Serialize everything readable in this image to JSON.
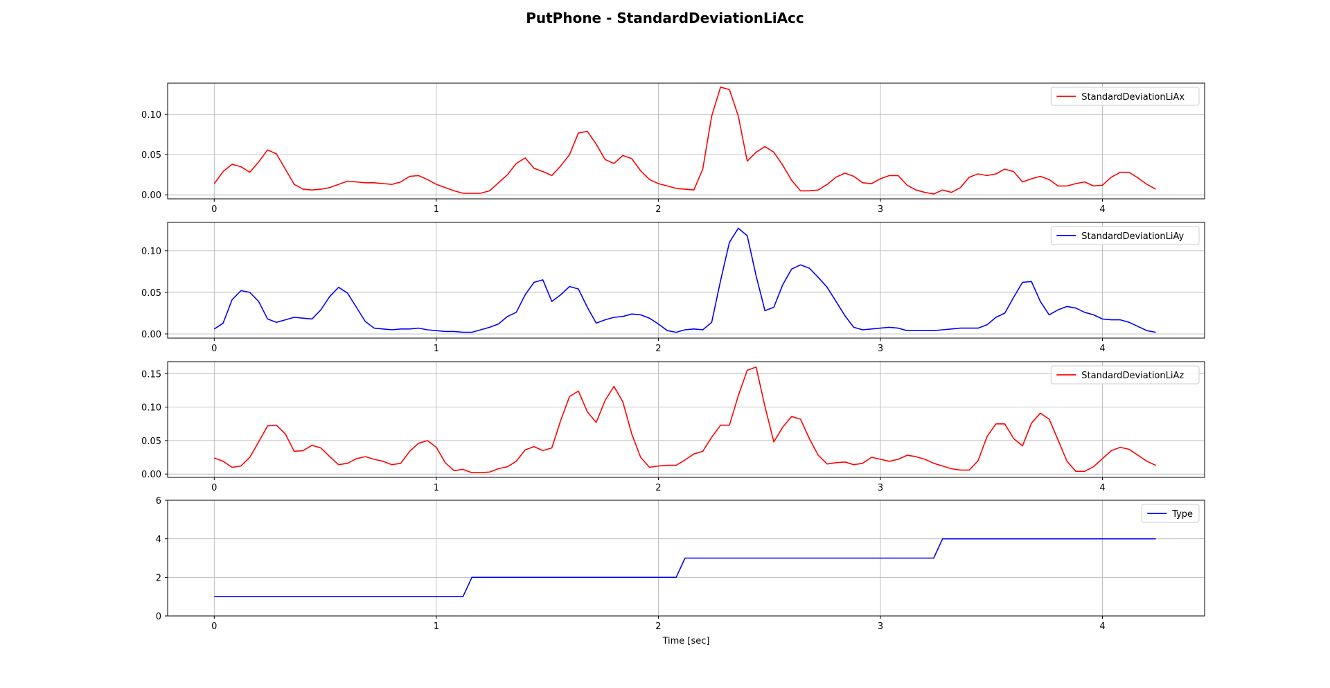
{
  "figure": {
    "title": "PutPhone - StandardDeviationLiAcc",
    "xlabel": "Time [sec]"
  },
  "chart_data": [
    {
      "type": "line",
      "title": "PutPhone - StandardDeviationLiAcc",
      "xlabel": "",
      "ylabel": "",
      "xlim": [
        -0.21,
        4.46
      ],
      "ylim": [
        -0.005,
        0.139
      ],
      "xticks": [
        0,
        1,
        2,
        3,
        4
      ],
      "yticks": [
        0.0,
        0.05,
        0.1
      ],
      "ytick_decimals": 2,
      "grid": true,
      "legend": "top-right",
      "series": [
        {
          "name": "StandardDeviationLiAx",
          "color": "#ff0000",
          "x": [
            0,
            0.04,
            0.08,
            0.12,
            0.16,
            0.2,
            0.24,
            0.28,
            0.32,
            0.36,
            0.4,
            0.44,
            0.48,
            0.52,
            0.56,
            0.6,
            0.64,
            0.68,
            0.72,
            0.76,
            0.8,
            0.84,
            0.88,
            0.92,
            0.96,
            1,
            1.04,
            1.08,
            1.12,
            1.16,
            1.2,
            1.24,
            1.28,
            1.32,
            1.36,
            1.4,
            1.44,
            1.48,
            1.52,
            1.56,
            1.6,
            1.64,
            1.68,
            1.72,
            1.76,
            1.8,
            1.84,
            1.88,
            1.92,
            1.96,
            2,
            2.04,
            2.08,
            2.12,
            2.16,
            2.2,
            2.24,
            2.28,
            2.32,
            2.36,
            2.4,
            2.44,
            2.48,
            2.52,
            2.56,
            2.6,
            2.64,
            2.68,
            2.72,
            2.76,
            2.8,
            2.84,
            2.88,
            2.92,
            2.96,
            3,
            3.04,
            3.08,
            3.12,
            3.16,
            3.2,
            3.24,
            3.28,
            3.32,
            3.36,
            3.4,
            3.44,
            3.48,
            3.52,
            3.56,
            3.6,
            3.64,
            3.68,
            3.72,
            3.76,
            3.8,
            3.84,
            3.88,
            3.92,
            3.96,
            4,
            4.04,
            4.08,
            4.12,
            4.16,
            4.2,
            4.24
          ],
          "values": [
            0.014,
            0.029,
            0.038,
            0.035,
            0.028,
            0.041,
            0.056,
            0.051,
            0.032,
            0.013,
            0.007,
            0.006,
            0.007,
            0.009,
            0.013,
            0.017,
            0.016,
            0.015,
            0.015,
            0.014,
            0.013,
            0.016,
            0.023,
            0.024,
            0.019,
            0.013,
            0.009,
            0.005,
            0.002,
            0.002,
            0.002,
            0.005,
            0.015,
            0.025,
            0.039,
            0.046,
            0.033,
            0.029,
            0.024,
            0.036,
            0.05,
            0.077,
            0.079,
            0.063,
            0.044,
            0.039,
            0.049,
            0.045,
            0.03,
            0.019,
            0.014,
            0.011,
            0.008,
            0.007,
            0.006,
            0.032,
            0.098,
            0.134,
            0.131,
            0.098,
            0.042,
            0.053,
            0.06,
            0.053,
            0.037,
            0.018,
            0.005,
            0.005,
            0.006,
            0.013,
            0.022,
            0.027,
            0.023,
            0.015,
            0.014,
            0.02,
            0.024,
            0.024,
            0.012,
            0.006,
            0.003,
            0.001,
            0.006,
            0.003,
            0.009,
            0.022,
            0.026,
            0.024,
            0.026,
            0.032,
            0.029,
            0.016,
            0.02,
            0.023,
            0.019,
            0.011,
            0.011,
            0.014,
            0.016,
            0.011,
            0.012,
            0.022,
            0.028,
            0.028,
            0.021,
            0.013,
            0.007
          ]
        }
      ]
    },
    {
      "type": "line",
      "title": "",
      "xlabel": "",
      "ylabel": "",
      "xlim": [
        -0.21,
        4.46
      ],
      "ylim": [
        -0.005,
        0.134
      ],
      "xticks": [
        0,
        1,
        2,
        3,
        4
      ],
      "yticks": [
        0.0,
        0.05,
        0.1
      ],
      "ytick_decimals": 2,
      "grid": true,
      "legend": "top-right",
      "series": [
        {
          "name": "StandardDeviationLiAy",
          "color": "#0000ff",
          "x": [
            0,
            0.04,
            0.08,
            0.12,
            0.16,
            0.2,
            0.24,
            0.28,
            0.32,
            0.36,
            0.4,
            0.44,
            0.48,
            0.52,
            0.56,
            0.6,
            0.64,
            0.68,
            0.72,
            0.76,
            0.8,
            0.84,
            0.88,
            0.92,
            0.96,
            1,
            1.04,
            1.08,
            1.12,
            1.16,
            1.2,
            1.24,
            1.28,
            1.32,
            1.36,
            1.4,
            1.44,
            1.48,
            1.52,
            1.56,
            1.6,
            1.64,
            1.68,
            1.72,
            1.76,
            1.8,
            1.84,
            1.88,
            1.92,
            1.96,
            2,
            2.04,
            2.08,
            2.12,
            2.16,
            2.2,
            2.24,
            2.28,
            2.32,
            2.36,
            2.4,
            2.44,
            2.48,
            2.52,
            2.56,
            2.6,
            2.64,
            2.68,
            2.72,
            2.76,
            2.8,
            2.84,
            2.88,
            2.92,
            2.96,
            3,
            3.04,
            3.08,
            3.12,
            3.16,
            3.2,
            3.24,
            3.28,
            3.32,
            3.36,
            3.4,
            3.44,
            3.48,
            3.52,
            3.56,
            3.6,
            3.64,
            3.68,
            3.72,
            3.76,
            3.8,
            3.84,
            3.88,
            3.92,
            3.96,
            4,
            4.04,
            4.08,
            4.12,
            4.16,
            4.2,
            4.24
          ],
          "values": [
            0.006,
            0.013,
            0.041,
            0.052,
            0.05,
            0.039,
            0.018,
            0.014,
            0.017,
            0.02,
            0.019,
            0.018,
            0.029,
            0.045,
            0.056,
            0.049,
            0.032,
            0.015,
            0.007,
            0.006,
            0.005,
            0.006,
            0.006,
            0.007,
            0.005,
            0.004,
            0.003,
            0.003,
            0.002,
            0.002,
            0.005,
            0.008,
            0.012,
            0.021,
            0.026,
            0.047,
            0.062,
            0.065,
            0.039,
            0.047,
            0.057,
            0.054,
            0.032,
            0.013,
            0.017,
            0.02,
            0.021,
            0.024,
            0.023,
            0.019,
            0.012,
            0.004,
            0.002,
            0.005,
            0.006,
            0.005,
            0.014,
            0.064,
            0.11,
            0.127,
            0.118,
            0.07,
            0.028,
            0.032,
            0.059,
            0.078,
            0.083,
            0.079,
            0.068,
            0.056,
            0.039,
            0.022,
            0.008,
            0.005,
            0.006,
            0.007,
            0.008,
            0.007,
            0.004,
            0.004,
            0.004,
            0.004,
            0.005,
            0.006,
            0.007,
            0.007,
            0.007,
            0.011,
            0.02,
            0.025,
            0.044,
            0.062,
            0.063,
            0.039,
            0.023,
            0.029,
            0.033,
            0.031,
            0.026,
            0.023,
            0.018,
            0.017,
            0.017,
            0.014,
            0.009,
            0.004,
            0.002
          ]
        }
      ]
    },
    {
      "type": "line",
      "title": "",
      "xlabel": "",
      "ylabel": "",
      "xlim": [
        -0.21,
        4.46
      ],
      "ylim": [
        -0.005,
        0.168
      ],
      "xticks": [
        0,
        1,
        2,
        3,
        4
      ],
      "yticks": [
        0.0,
        0.05,
        0.1,
        0.15
      ],
      "ytick_decimals": 2,
      "grid": true,
      "legend": "top-right",
      "series": [
        {
          "name": "StandardDeviationLiAz",
          "color": "#ff0000",
          "x": [
            0,
            0.04,
            0.08,
            0.12,
            0.16,
            0.2,
            0.24,
            0.28,
            0.32,
            0.36,
            0.4,
            0.44,
            0.48,
            0.52,
            0.56,
            0.6,
            0.64,
            0.68,
            0.72,
            0.76,
            0.8,
            0.84,
            0.88,
            0.92,
            0.96,
            1,
            1.04,
            1.08,
            1.12,
            1.16,
            1.2,
            1.24,
            1.28,
            1.32,
            1.36,
            1.4,
            1.44,
            1.48,
            1.52,
            1.56,
            1.6,
            1.64,
            1.68,
            1.72,
            1.76,
            1.8,
            1.84,
            1.88,
            1.92,
            1.96,
            2,
            2.04,
            2.08,
            2.12,
            2.16,
            2.2,
            2.24,
            2.28,
            2.32,
            2.36,
            2.4,
            2.44,
            2.48,
            2.52,
            2.56,
            2.6,
            2.64,
            2.68,
            2.72,
            2.76,
            2.8,
            2.84,
            2.88,
            2.92,
            2.96,
            3,
            3.04,
            3.08,
            3.12,
            3.16,
            3.2,
            3.24,
            3.28,
            3.32,
            3.36,
            3.4,
            3.44,
            3.48,
            3.52,
            3.56,
            3.6,
            3.64,
            3.68,
            3.72,
            3.76,
            3.8,
            3.84,
            3.88,
            3.92,
            3.96,
            4,
            4.04,
            4.08,
            4.12,
            4.16,
            4.2,
            4.24
          ],
          "values": [
            0.024,
            0.019,
            0.01,
            0.012,
            0.025,
            0.048,
            0.072,
            0.073,
            0.06,
            0.034,
            0.035,
            0.043,
            0.039,
            0.026,
            0.014,
            0.016,
            0.023,
            0.026,
            0.022,
            0.019,
            0.014,
            0.016,
            0.034,
            0.046,
            0.05,
            0.04,
            0.017,
            0.005,
            0.007,
            0.002,
            0.002,
            0.003,
            0.008,
            0.011,
            0.019,
            0.036,
            0.041,
            0.035,
            0.039,
            0.08,
            0.116,
            0.124,
            0.093,
            0.077,
            0.11,
            0.131,
            0.108,
            0.06,
            0.025,
            0.01,
            0.012,
            0.013,
            0.013,
            0.021,
            0.03,
            0.034,
            0.055,
            0.073,
            0.073,
            0.117,
            0.155,
            0.16,
            0.101,
            0.048,
            0.07,
            0.086,
            0.082,
            0.053,
            0.028,
            0.015,
            0.017,
            0.018,
            0.014,
            0.016,
            0.025,
            0.022,
            0.019,
            0.022,
            0.028,
            0.026,
            0.022,
            0.016,
            0.012,
            0.008,
            0.006,
            0.006,
            0.02,
            0.056,
            0.075,
            0.075,
            0.053,
            0.042,
            0.076,
            0.091,
            0.082,
            0.051,
            0.019,
            0.004,
            0.004,
            0.011,
            0.023,
            0.035,
            0.04,
            0.037,
            0.028,
            0.019,
            0.013
          ]
        }
      ]
    },
    {
      "type": "line",
      "title": "",
      "xlabel": "Time [sec]",
      "ylabel": "",
      "xlim": [
        -0.21,
        4.46
      ],
      "ylim": [
        0,
        6
      ],
      "xticks": [
        0,
        1,
        2,
        3,
        4
      ],
      "yticks": [
        0,
        2,
        4,
        6
      ],
      "ytick_decimals": 0,
      "grid": true,
      "legend": "top-right",
      "series": [
        {
          "name": "Type",
          "color": "#0000ff",
          "x": [
            0,
            1.12,
            1.16,
            2.08,
            2.12,
            3.24,
            3.28,
            4.24
          ],
          "values": [
            1,
            1,
            2,
            2,
            3,
            3,
            4,
            4
          ]
        }
      ]
    }
  ]
}
